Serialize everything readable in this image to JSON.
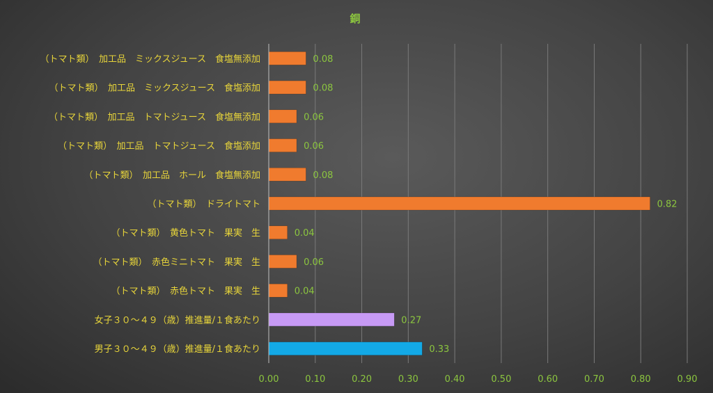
{
  "colors": {
    "title": "#8cc63f",
    "category_label": "#e8d53a",
    "value_label": "#8cc63f",
    "tick_label": "#8cc63f",
    "grid": "#7a7a7a",
    "axis": "#bfbfbf",
    "bar_tomato": "#f07b2e",
    "bar_female": "#c79af5",
    "bar_male": "#13a9e6"
  },
  "chart_data": {
    "type": "bar",
    "orientation": "horizontal",
    "title": "銅",
    "xlim": [
      0,
      0.9
    ],
    "xticks": [
      "0.00",
      "0.10",
      "0.20",
      "0.30",
      "0.40",
      "0.50",
      "0.60",
      "0.70",
      "0.80",
      "0.90"
    ],
    "grid": true,
    "legend": "none",
    "categories": [
      "（トマト類）　加工品　ミックスジュース　食塩無添加",
      "（トマト類）　加工品　ミックスジュース　食塩添加",
      "（トマト類）　加工品　トマトジュース　食塩無添加",
      "（トマト類）　加工品　トマトジュース　食塩添加",
      "（トマト類）　加工品　ホール　食塩無添加",
      "（トマト類）　ドライトマト",
      "（トマト類）　黄色トマト　果実　生",
      "（トマト類）　赤色ミニトマト　果実　生",
      "（トマト類）　赤色トマト　果実　生",
      "女子３０～４９（歳）推進量/１食あたり",
      "男子３０～４９（歳）推進量/１食あたり"
    ],
    "values": [
      0.08,
      0.08,
      0.06,
      0.06,
      0.08,
      0.82,
      0.04,
      0.06,
      0.04,
      0.27,
      0.33
    ],
    "value_labels": [
      "0.08",
      "0.08",
      "0.06",
      "0.06",
      "0.08",
      "0.82",
      "0.04",
      "0.06",
      "0.04",
      "0.27",
      "0.33"
    ],
    "bar_colors": [
      "#f07b2e",
      "#f07b2e",
      "#f07b2e",
      "#f07b2e",
      "#f07b2e",
      "#f07b2e",
      "#f07b2e",
      "#f07b2e",
      "#f07b2e",
      "#c79af5",
      "#13a9e6"
    ]
  }
}
